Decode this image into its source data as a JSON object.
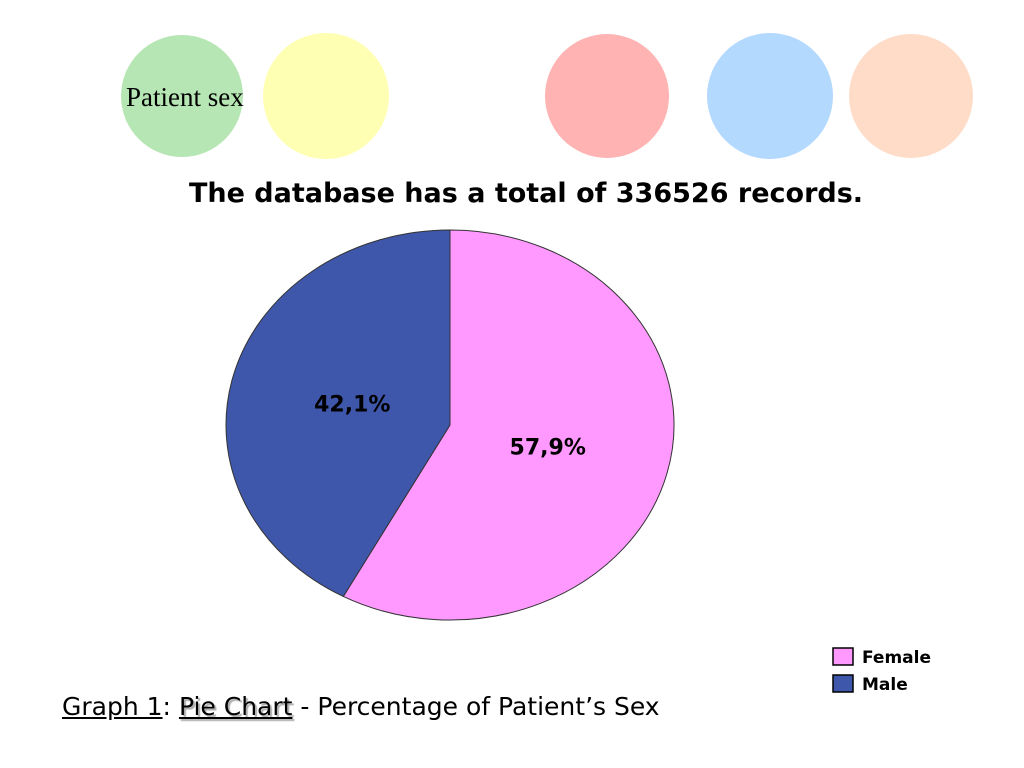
{
  "heading": "Patient sex",
  "chart_data": {
    "type": "pie",
    "title": "The database has a total of  336526 records.",
    "categories": [
      "Female",
      "Male"
    ],
    "values": [
      57.9,
      42.1
    ],
    "value_labels": [
      "57,9%",
      "42,1%"
    ],
    "colors": [
      "#ff99ff",
      "#3f57aa"
    ],
    "caption": {
      "label": "Graph 1",
      "colon": ":",
      "kind": "Pie Chart",
      "dash": "-",
      "text": "Percentage of Patient’s Sex"
    }
  }
}
